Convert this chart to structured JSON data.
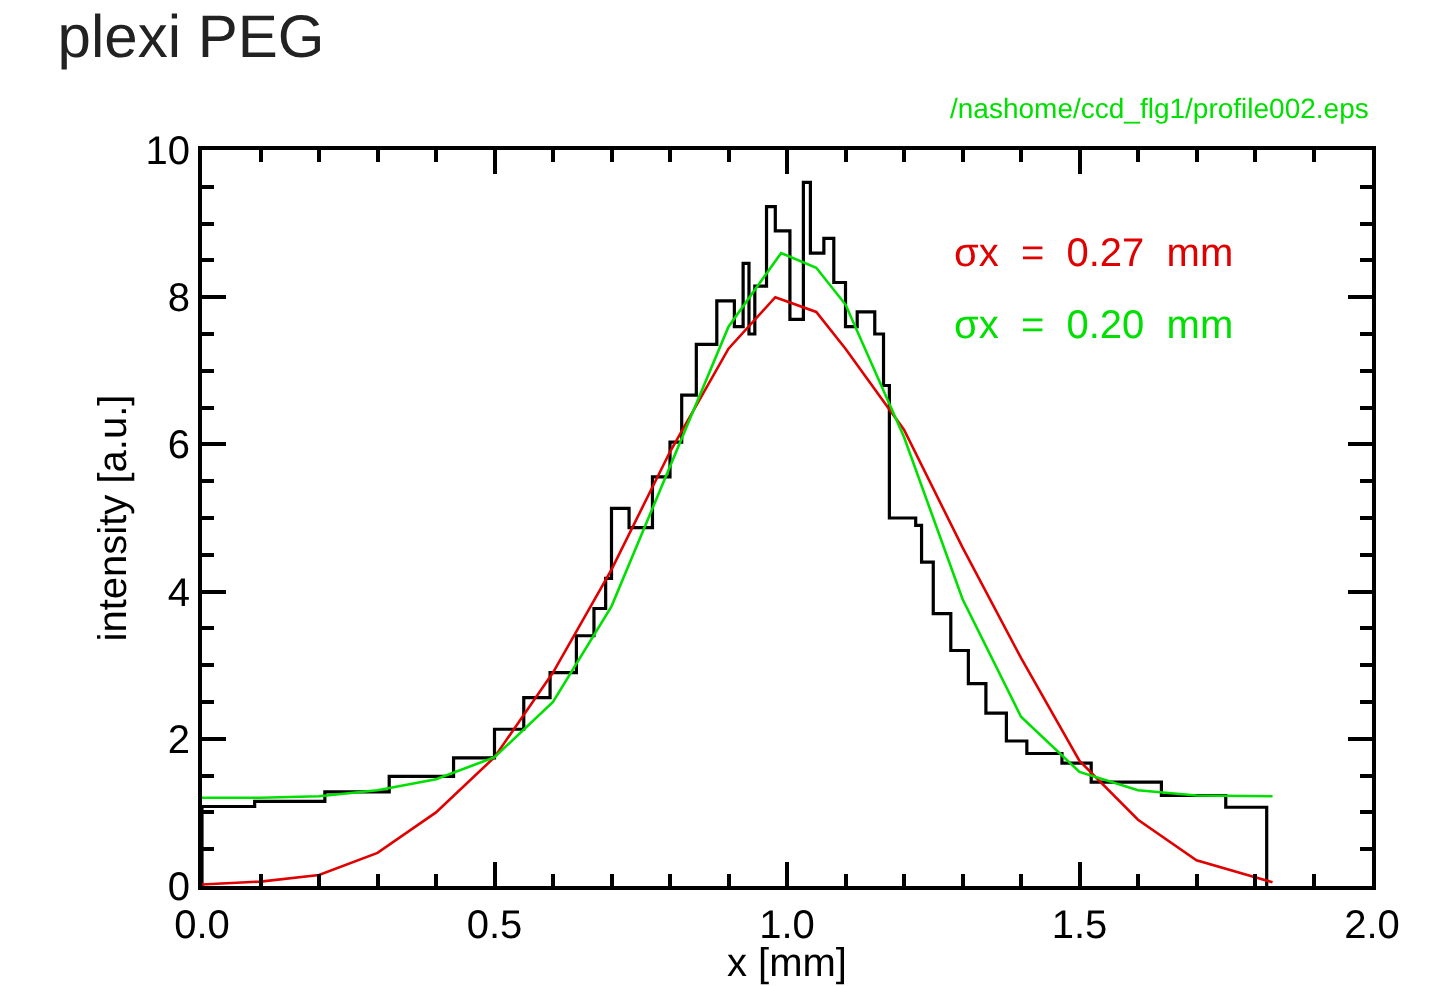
{
  "chart_data": {
    "type": "line",
    "title": "plexi PEG",
    "xlabel": "x [mm]",
    "ylabel": "intensity [a.u.]",
    "annotations": [
      "/nashome/ccd_flg1/profile002.eps"
    ],
    "xlim": [
      0,
      2
    ],
    "xticks": [
      {
        "value": 0,
        "label": "0.0"
      },
      {
        "value": 0.5,
        "label": "0.5"
      },
      {
        "value": 1,
        "label": "1.0"
      },
      {
        "value": 1.5,
        "label": "1.5"
      },
      {
        "value": 2,
        "label": "2.0"
      }
    ],
    "ylim": [
      0,
      10
    ],
    "yticks": [
      0,
      2,
      4,
      6,
      8,
      10
    ],
    "grid": false,
    "marker": "none",
    "line_style": "solid",
    "series": [
      {
        "type": "step",
        "color": "#000000",
        "x": [
          0,
          0,
          0.09,
          0.21,
          0.32,
          0.43,
          0.5,
          0.55,
          0.595,
          0.64,
          0.67,
          0.69,
          0.7,
          0.73,
          0.77,
          0.8,
          0.82,
          0.845,
          0.88,
          0.91,
          0.925,
          0.935,
          0.945,
          0.965,
          0.98,
          1.005,
          1.028,
          1.04,
          1.063,
          1.08,
          1.1,
          1.12,
          1.15,
          1.165,
          1.175,
          1.22,
          1.23,
          1.25,
          1.28,
          1.31,
          1.34,
          1.375,
          1.41,
          1.47,
          1.52,
          1.64,
          1.75,
          1.82,
          1.82
        ],
        "values": [
          0,
          1.08,
          1.15,
          1.28,
          1.49,
          1.74,
          2.13,
          2.56,
          2.9,
          3.4,
          3.77,
          4.18,
          5.13,
          4.87,
          5.56,
          6.03,
          6.67,
          7.36,
          7.95,
          7.6,
          8.46,
          7.5,
          8.15,
          9.23,
          8.9,
          7.7,
          9.56,
          8.6,
          8.8,
          8.2,
          7.6,
          7.8,
          7.5,
          6.8,
          5.0,
          4.9,
          4.4,
          3.7,
          3.2,
          2.75,
          2.35,
          1.97,
          1.8,
          1.67,
          1.41,
          1.23,
          1.07,
          1.03,
          0
        ]
      },
      {
        "name": "σx = 0.27 mm",
        "color": "#e00000",
        "x": [
          0,
          0.1,
          0.2,
          0.3,
          0.4,
          0.5,
          0.6,
          0.7,
          0.8,
          0.9,
          0.98,
          1.05,
          1.1,
          1.2,
          1.3,
          1.4,
          1.5,
          1.6,
          1.7,
          1.83
        ],
        "values": [
          0.02,
          0.06,
          0.15,
          0.45,
          1.0,
          1.75,
          2.9,
          4.3,
          5.9,
          7.3,
          8.0,
          7.8,
          7.3,
          6.2,
          4.6,
          3.1,
          1.7,
          0.9,
          0.35,
          0.05
        ]
      },
      {
        "name": "σx = 0.20 mm",
        "color": "#00e000",
        "x": [
          0,
          0.1,
          0.2,
          0.3,
          0.4,
          0.5,
          0.6,
          0.7,
          0.8,
          0.9,
          0.99,
          1.05,
          1.1,
          1.2,
          1.3,
          1.4,
          1.5,
          1.6,
          1.7,
          1.83
        ],
        "values": [
          1.2,
          1.2,
          1.22,
          1.3,
          1.45,
          1.75,
          2.5,
          3.8,
          5.7,
          7.6,
          8.6,
          8.4,
          7.9,
          6.1,
          3.9,
          2.3,
          1.55,
          1.3,
          1.23,
          1.22
        ]
      }
    ]
  }
}
